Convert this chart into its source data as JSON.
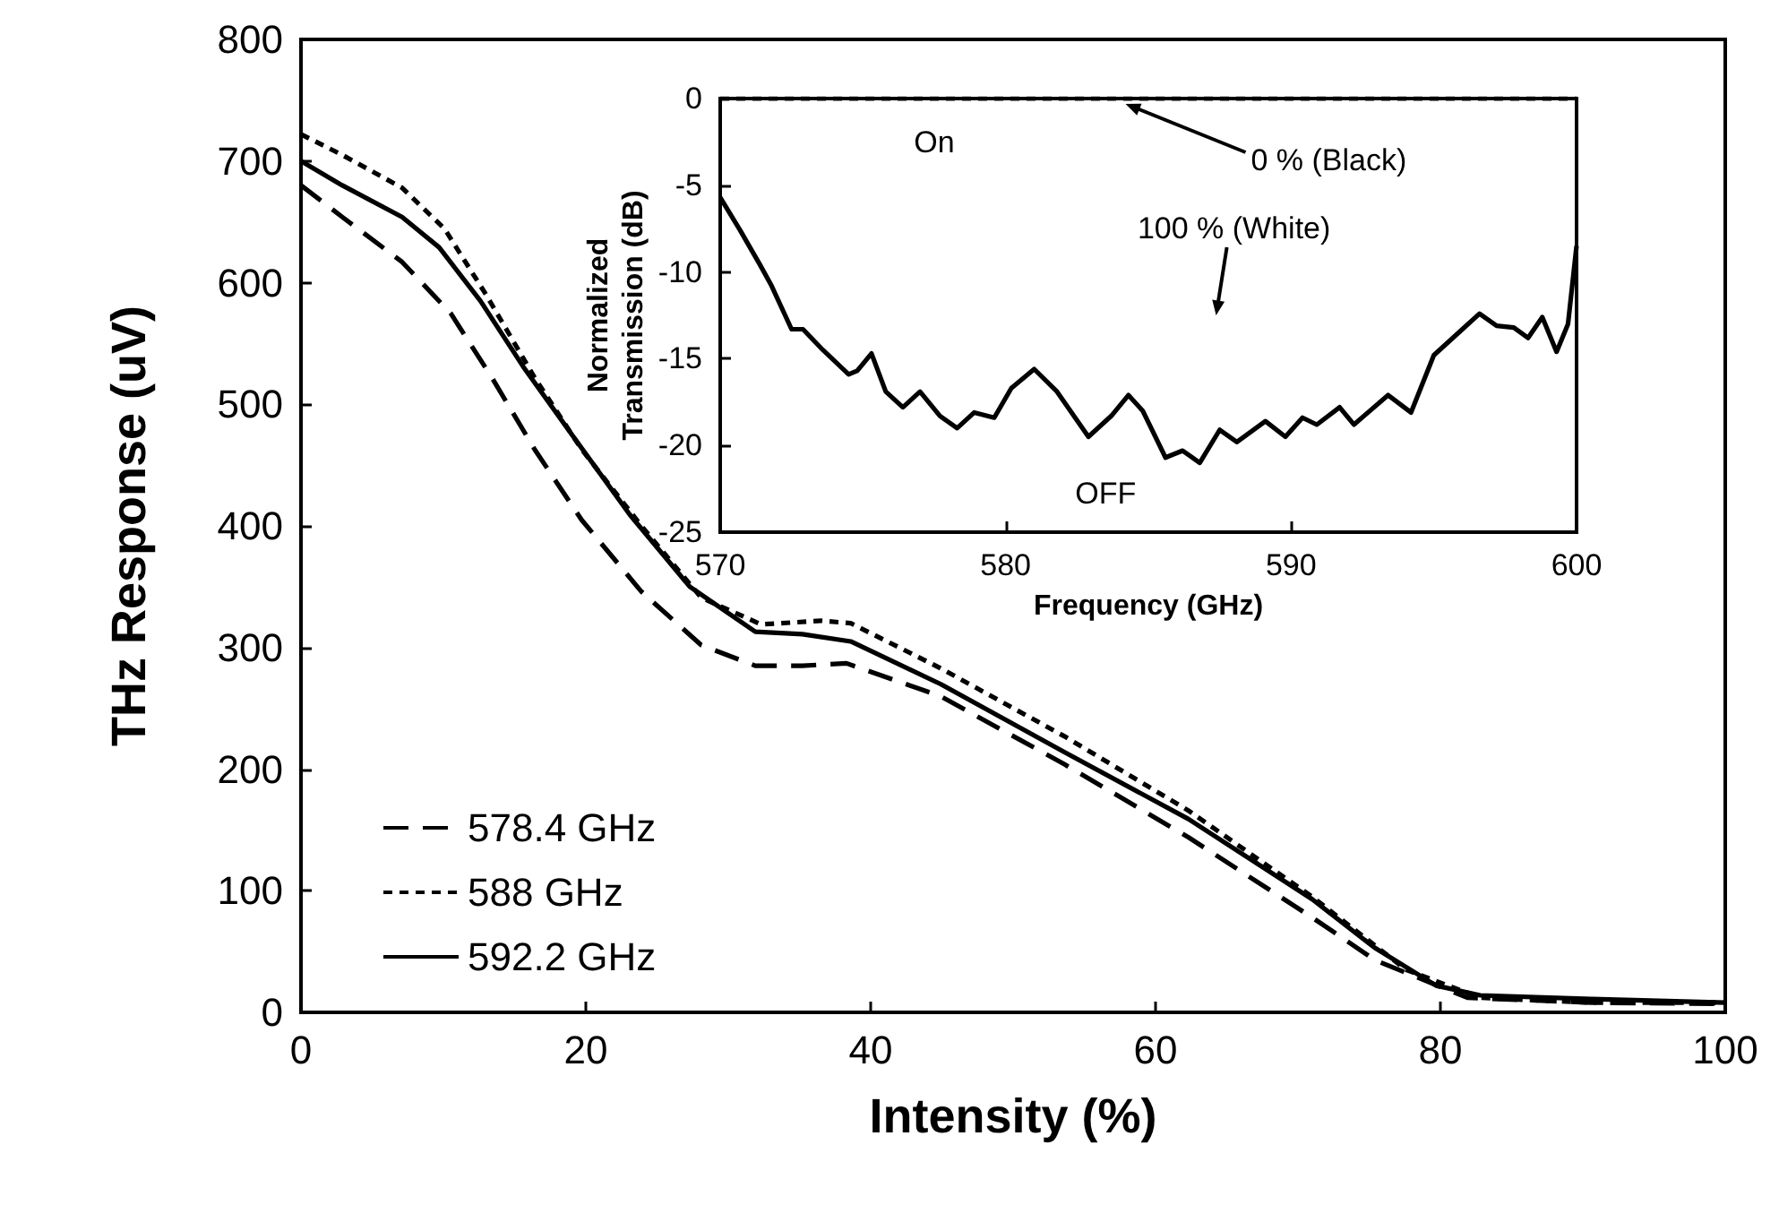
{
  "chart_data": [
    {
      "type": "line",
      "xlabel": "Intensity (%)",
      "ylabel": "THz Response (uV)",
      "xlim": [
        0,
        100
      ],
      "xticks": [
        0,
        20,
        40,
        60,
        80,
        100
      ],
      "ylim": [
        0,
        800
      ],
      "yticks": [
        0,
        100,
        200,
        300,
        400,
        500,
        600,
        700,
        800
      ],
      "grid": false,
      "legend": "bottom left",
      "marker": "none",
      "series": [
        {
          "name": "578.4 GHz",
          "color": "#000000",
          "line_style": "dashed",
          "x": [
            0,
            2.9,
            7.1,
            10.5,
            13.4,
            16.4,
            19.7,
            23.9,
            28.1,
            31.9,
            35.2,
            38.3,
            44.9,
            53.6,
            62.3,
            71,
            75.4,
            81.9,
            90.6,
            100
          ],
          "values": [
            680,
            654,
            617,
            575,
            522,
            463,
            405,
            346,
            302,
            285,
            285,
            287,
            260,
            204,
            144,
            78,
            43,
            12,
            8,
            7
          ]
        },
        {
          "name": "588 GHz",
          "color": "#000000",
          "line_style": "dotted",
          "x": [
            0,
            2.9,
            7.1,
            10.1,
            13,
            16.4,
            19.7,
            23.9,
            28.1,
            32.3,
            36.5,
            38.6,
            44.9,
            53.6,
            62.3,
            71,
            77.6,
            82.8,
            90.6,
            100
          ],
          "values": [
            722,
            705,
            678,
            644,
            590,
            522,
            463,
            400,
            341,
            319,
            322,
            320,
            283,
            227,
            166,
            95,
            35,
            12,
            8,
            8
          ]
        },
        {
          "name": "592.2 GHz",
          "color": "#000000",
          "line_style": "solid",
          "x": [
            0,
            2.9,
            7.1,
            9.7,
            12.6,
            15.6,
            18.9,
            23.1,
            27.3,
            31.9,
            35.2,
            38.6,
            44.9,
            53.6,
            62.3,
            71,
            75.4,
            79.7,
            82.8,
            90.6,
            100
          ],
          "values": [
            700,
            680,
            654,
            629,
            585,
            531,
            477,
            409,
            350,
            313,
            311,
            305,
            270,
            214,
            159,
            93,
            53,
            22,
            14,
            11,
            8
          ]
        }
      ]
    },
    {
      "type": "line",
      "xlabel": "Frequency (GHz)",
      "ylabel": "Normalized Transmission (dB)",
      "xlim": [
        570,
        600
      ],
      "xticks": [
        570,
        580,
        590,
        600
      ],
      "ylim": [
        -25,
        0
      ],
      "yticks": [
        -25,
        -20,
        -15,
        -10,
        -5,
        0
      ],
      "grid": false,
      "legend": false,
      "marker": "none",
      "annotations": [
        {
          "text": "On",
          "x": 577.5,
          "y": 0
        },
        {
          "text": "0 % (Black)",
          "x": 584.2,
          "y": 0
        },
        "100 % (White)",
        "OFF"
      ],
      "series": [
        {
          "color": "#000000",
          "line_style": "dotted",
          "x": [
            570,
            575,
            580,
            585,
            590,
            595,
            600
          ],
          "values": [
            0,
            0,
            0,
            0,
            0,
            0,
            0
          ]
        },
        {
          "color": "#000000",
          "line_style": "solid",
          "x": [
            570,
            570.7,
            571.4,
            571.8,
            572.5,
            572.9,
            573.6,
            574.5,
            574.8,
            575.3,
            575.8,
            576.4,
            577,
            577.7,
            578.3,
            578.9,
            579.6,
            580.2,
            581,
            581.8,
            582.9,
            583.7,
            584.3,
            584.8,
            585.6,
            586.2,
            586.8,
            587.5,
            588.1,
            589.1,
            589.8,
            590.4,
            590.9,
            591.7,
            592.2,
            593.4,
            594.2,
            595,
            596,
            596.6,
            597.2,
            597.8,
            598.3,
            598.8,
            599.3,
            599.7,
            600
          ],
          "values": [
            -5.7,
            -7.6,
            -9.6,
            -10.8,
            -13.3,
            -13.3,
            -14.5,
            -15.9,
            -15.7,
            -14.7,
            -16.9,
            -17.8,
            -16.9,
            -18.3,
            -19,
            -18.1,
            -18.4,
            -16.7,
            -15.6,
            -16.9,
            -19.5,
            -18.3,
            -17.1,
            -18,
            -20.7,
            -20.3,
            -21,
            -19.1,
            -19.8,
            -18.6,
            -19.5,
            -18.4,
            -18.8,
            -17.8,
            -18.8,
            -17.1,
            -18.1,
            -14.8,
            -13.3,
            -12.4,
            -13.1,
            -13.2,
            -13.8,
            -12.6,
            -14.6,
            -13,
            -8.5
          ]
        }
      ]
    }
  ]
}
